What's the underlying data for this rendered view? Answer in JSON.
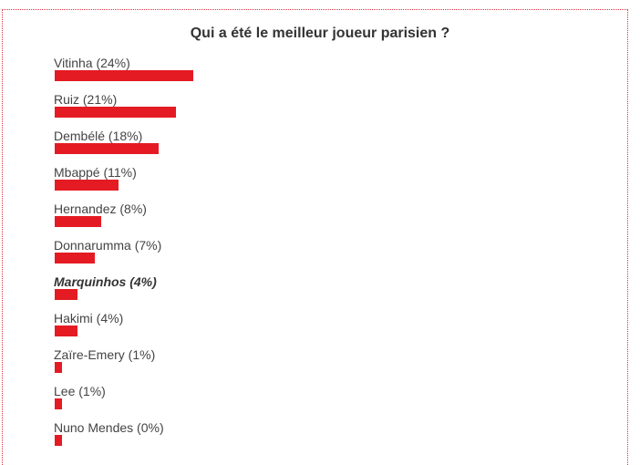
{
  "poll": {
    "title": "Qui a été le meilleur joueur parisien ?",
    "bar_color": "#e41b23",
    "options": [
      {
        "label": "Vitinha (24%)",
        "percent": 24,
        "selected": false
      },
      {
        "label": "Ruiz (21%)",
        "percent": 21,
        "selected": false
      },
      {
        "label": "Dembélé (18%)",
        "percent": 18,
        "selected": false
      },
      {
        "label": "Mbappé (11%)",
        "percent": 11,
        "selected": false
      },
      {
        "label": "Hernandez (8%)",
        "percent": 8,
        "selected": false
      },
      {
        "label": "Donnarumma (7%)",
        "percent": 7,
        "selected": false
      },
      {
        "label": "Marquinhos (4%)",
        "percent": 4,
        "selected": true
      },
      {
        "label": "Hakimi (4%)",
        "percent": 4,
        "selected": false
      },
      {
        "label": "Zaïre-Emery (1%)",
        "percent": 1,
        "selected": false
      },
      {
        "label": "Lee (1%)",
        "percent": 1,
        "selected": false
      },
      {
        "label": "Nuno Mendes (0%)",
        "percent": 0,
        "selected": false
      }
    ]
  }
}
